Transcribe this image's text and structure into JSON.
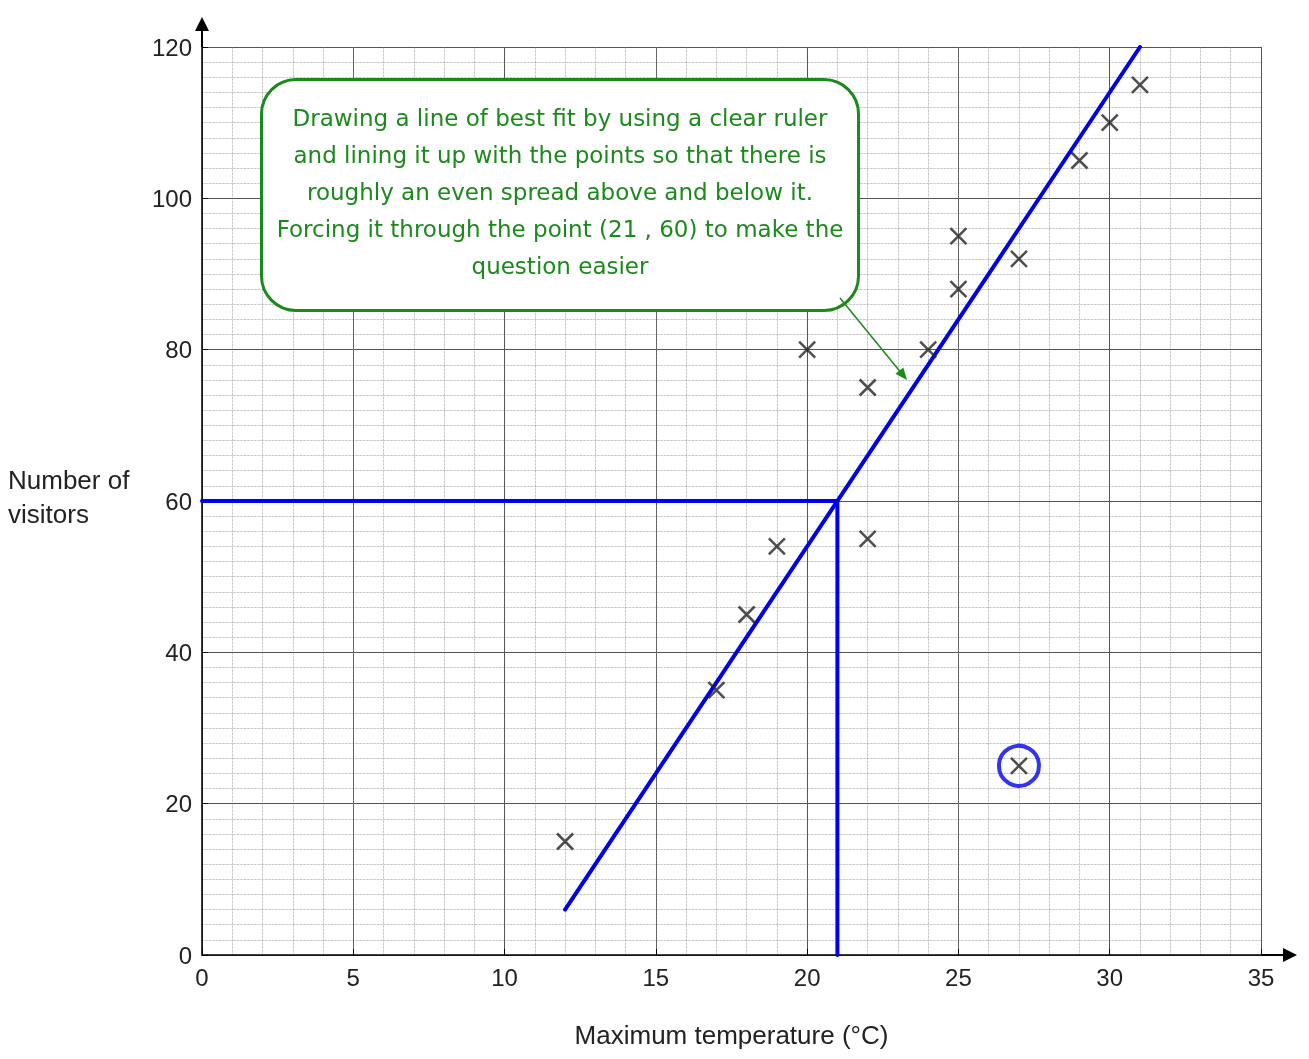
{
  "chart_data": {
    "type": "scatter",
    "xlabel": "Maximum temperature (°C)",
    "ylabel": "Number of visitors",
    "xlim": [
      0,
      35
    ],
    "ylim": [
      0,
      120
    ],
    "xticks": [
      0,
      5,
      10,
      15,
      20,
      25,
      30,
      35
    ],
    "yticks": [
      0,
      20,
      40,
      60,
      80,
      100,
      120
    ],
    "grid": true,
    "annotations": [
      "Drawing a line of best fit by using a clear ruler and lining it up with the points so that there is roughly an even spread above and below it. Forcing it through the point (21 , 60) to make the question easier"
    ],
    "series": [
      {
        "marker": "cross",
        "color": "#222222",
        "x": [
          12,
          17,
          18,
          19,
          20,
          22,
          22,
          24,
          25,
          25,
          27,
          27,
          29,
          30,
          31
        ],
        "values": [
          15,
          35,
          45,
          54,
          80,
          75,
          55,
          80,
          95,
          88,
          92,
          25,
          105,
          110,
          115
        ]
      },
      {
        "type": "line",
        "marker": "none",
        "color": "#0000ee",
        "x": [
          12,
          31
        ],
        "values": [
          6,
          120
        ]
      },
      {
        "type": "line",
        "marker": "none",
        "color": "#0000ee",
        "x": [
          0,
          21,
          21
        ],
        "values": [
          60,
          60,
          0
        ]
      },
      {
        "marker": "circle",
        "color": "#0000ee",
        "x": [
          27
        ],
        "values": [
          25
        ]
      }
    ]
  }
}
